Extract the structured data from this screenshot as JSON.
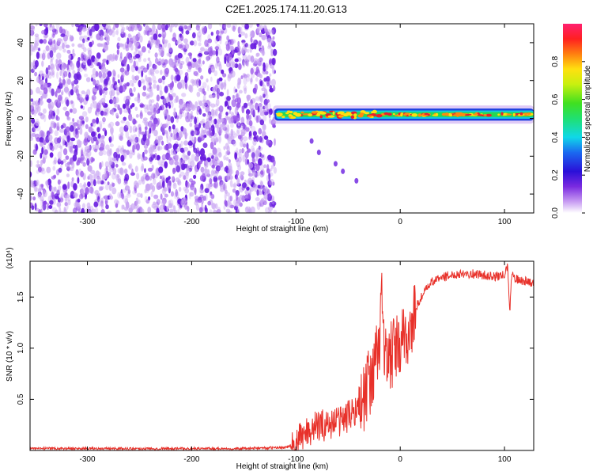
{
  "title": "C2E1.2025.174.11.20.G13",
  "chart_data": [
    {
      "type": "heatmap",
      "xlabel": "Height of straight line (km)",
      "ylabel": "Frequency (Hz)",
      "xlim": [
        -355,
        128
      ],
      "ylim": [
        -50,
        50
      ],
      "xticks": [
        -300,
        -200,
        -100,
        0,
        100
      ],
      "xtick_labels": [
        "-300",
        "-200",
        "-100",
        "0",
        "100"
      ],
      "yticks": [
        -40,
        -20,
        0,
        20,
        40
      ],
      "ytick_labels": [
        "-40",
        "-20",
        "0",
        "20",
        "40"
      ],
      "grid": false,
      "colorbar": {
        "label": "Normalized spectral amplitude",
        "range": [
          0,
          1
        ],
        "ticks": [
          0.0,
          0.2,
          0.4,
          0.6,
          0.8
        ],
        "tick_labels": [
          "0.0",
          "0.2",
          "0.4",
          "0.6",
          "0.8"
        ],
        "colormap": "rainbow"
      },
      "regions": [
        {
          "x": [
            -355,
            -120
          ],
          "freq": [
            -50,
            50
          ],
          "amplitude": "low (0.1-0.3), noise"
        },
        {
          "x": [
            -122,
            128
          ],
          "freq_center": 2,
          "freq_halfwidth": 4,
          "amplitude": "0.4-0.9 carrier"
        }
      ]
    },
    {
      "type": "line",
      "xlabel": "Height of straight line (km)",
      "ylabel": "SNR (10 * v/v)",
      "y_multiplier": "(x10⁴)",
      "xlim": [
        -355,
        128
      ],
      "ylim": [
        0,
        1.85
      ],
      "xticks": [
        -300,
        -200,
        -100,
        0,
        100
      ],
      "xtick_labels": [
        "-300",
        "-200",
        "-100",
        "0",
        "100"
      ],
      "yticks": [
        0.5,
        1.0,
        1.5
      ],
      "ytick_labels": [
        "0.5",
        "1.0",
        "1.5"
      ],
      "grid": false,
      "series": [
        {
          "color": "#e8312a",
          "x": [
            -355,
            -300,
            -250,
            -200,
            -150,
            -110,
            -100,
            -95,
            -90,
            -80,
            -70,
            -60,
            -50,
            -40,
            -35,
            -30,
            -25,
            -20,
            -18,
            -15,
            -10,
            -5,
            0,
            5,
            10,
            15,
            20,
            25,
            30,
            40,
            50,
            60,
            70,
            80,
            90,
            100,
            103,
            105,
            107,
            110,
            115,
            120,
            128
          ],
          "y": [
            0.02,
            0.02,
            0.02,
            0.02,
            0.02,
            0.03,
            0.06,
            0.15,
            0.2,
            0.25,
            0.27,
            0.3,
            0.35,
            0.45,
            0.55,
            0.7,
            0.85,
            1.0,
            1.8,
            0.9,
            0.95,
            1.0,
            1.05,
            1.15,
            1.2,
            1.4,
            1.5,
            1.58,
            1.65,
            1.7,
            1.72,
            1.74,
            1.73,
            1.72,
            1.7,
            1.72,
            1.8,
            1.35,
            1.75,
            1.68,
            1.67,
            1.66,
            1.65
          ]
        }
      ]
    }
  ]
}
